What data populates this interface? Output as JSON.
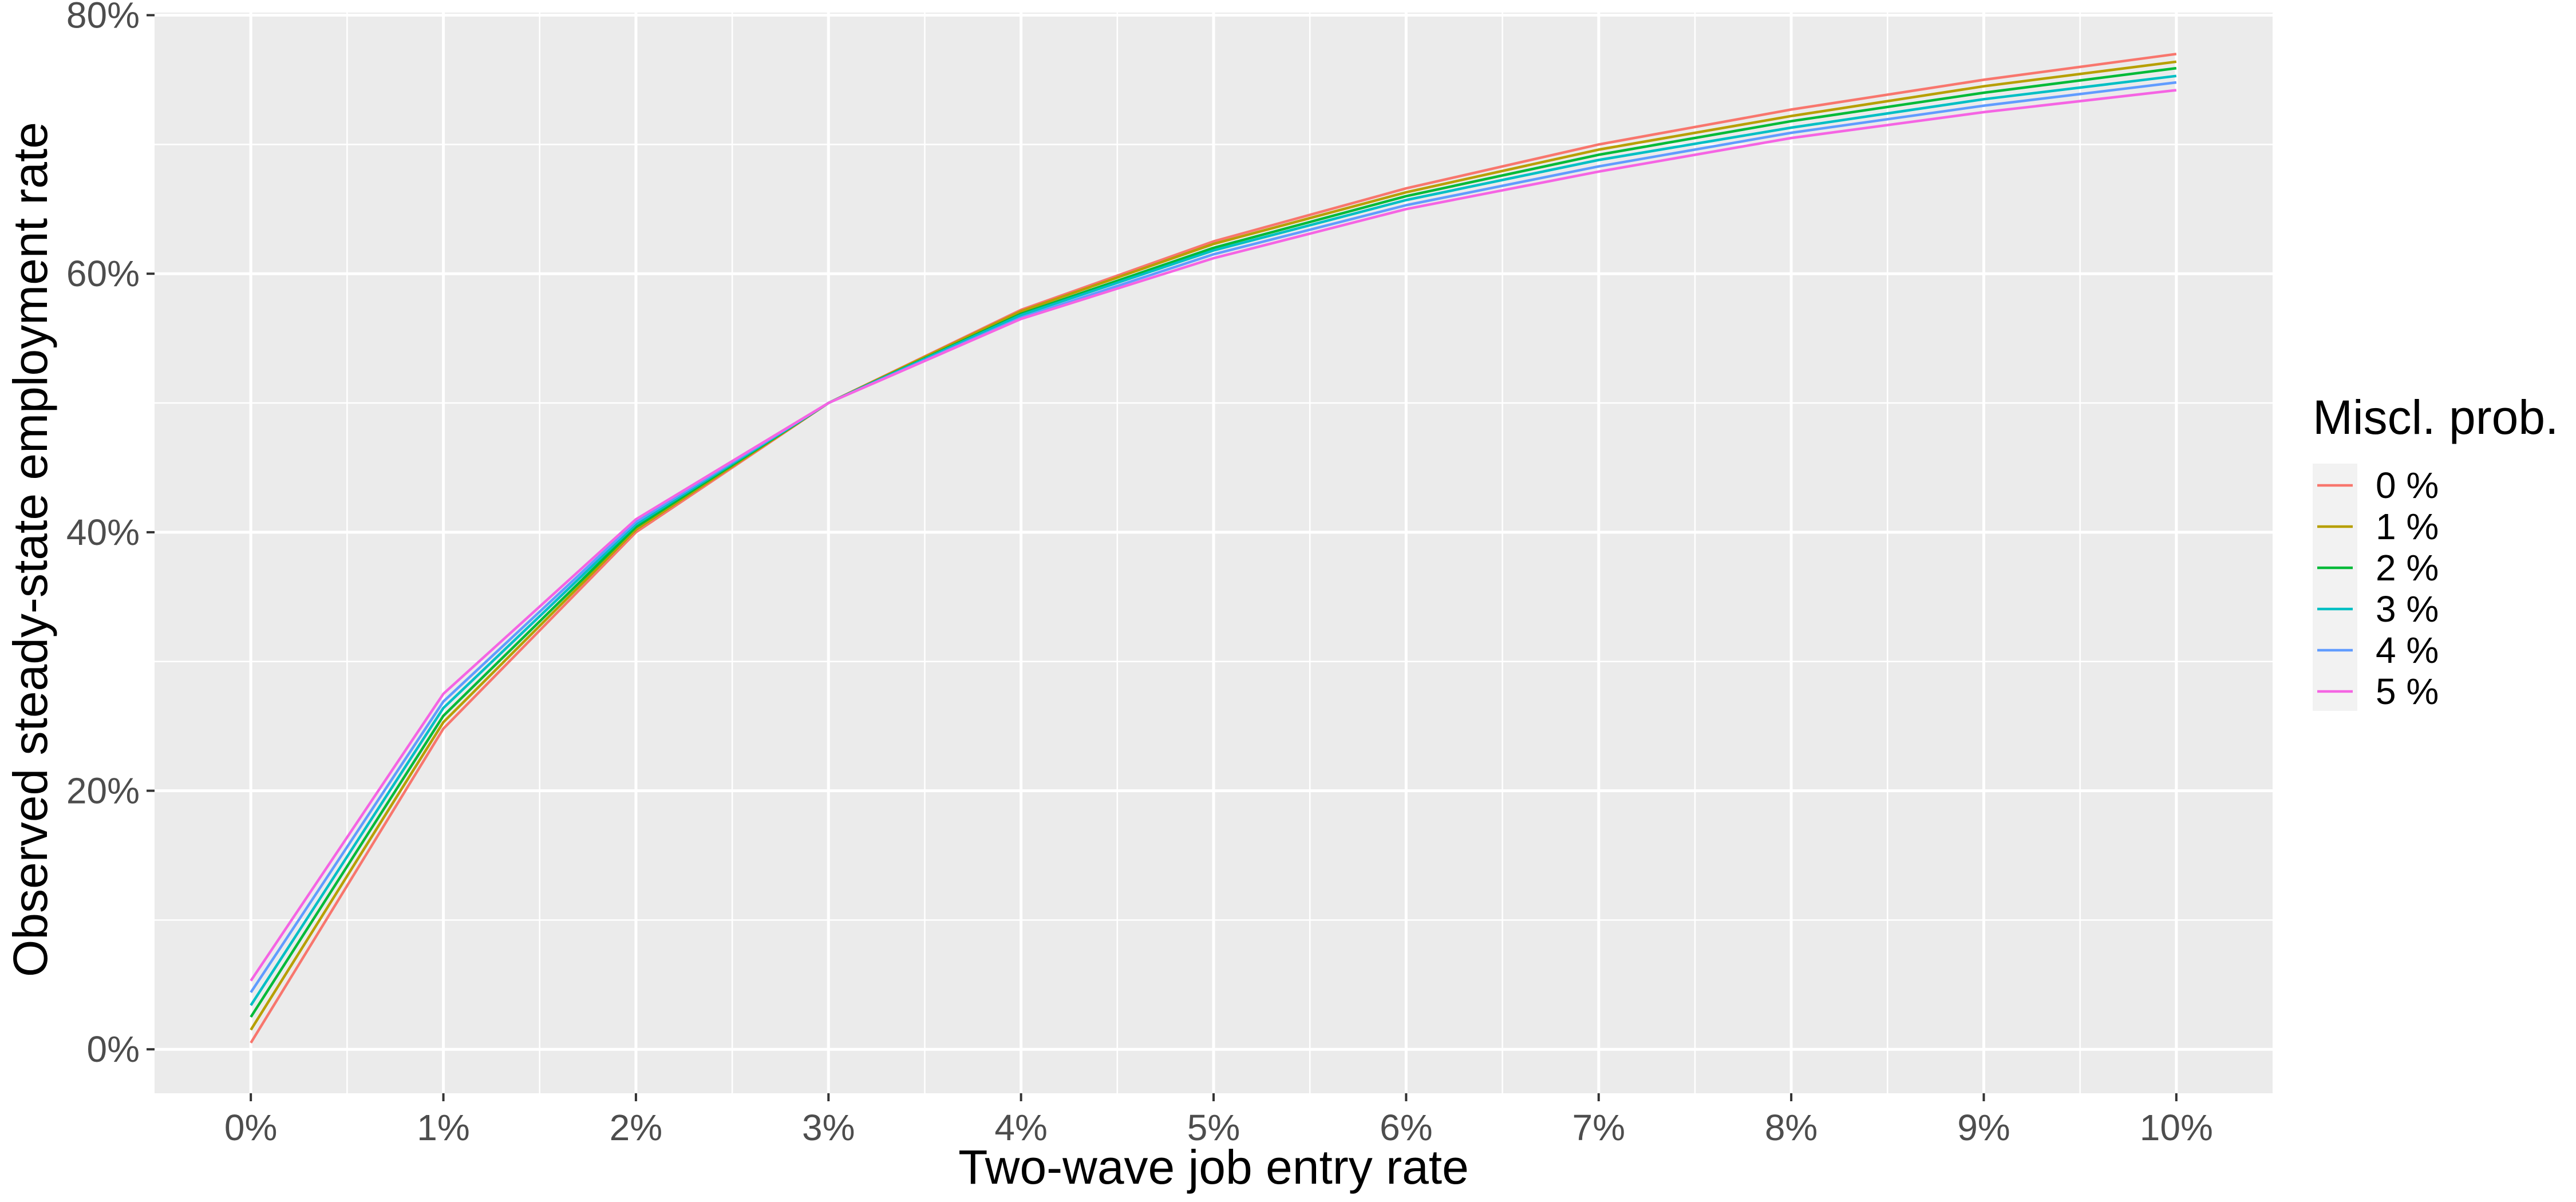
{
  "chart_data": {
    "type": "line",
    "xlabel": "Two-wave job entry rate",
    "ylabel": "Observed steady-state employment rate",
    "x": [
      0,
      1,
      2,
      3,
      4,
      5,
      6,
      7,
      8,
      9,
      10
    ],
    "x_tick_labels": [
      "0%",
      "1%",
      "2%",
      "3%",
      "4%",
      "5%",
      "6%",
      "7%",
      "8%",
      "9%",
      "10%"
    ],
    "y_ticks": [
      0,
      20,
      40,
      60,
      80
    ],
    "y_tick_labels": [
      "0%",
      "20%",
      "40%",
      "60%",
      "80%"
    ],
    "xlim": [
      -0.5,
      10.5
    ],
    "ylim": [
      -3.4,
      80.2
    ],
    "grid": true,
    "legend": {
      "title": "Miscl. prob.",
      "position": "right"
    },
    "series": [
      {
        "name": "0 %",
        "color": "#F8766D",
        "values": [
          0.5,
          24.8,
          40.0,
          50.0,
          57.2,
          62.5,
          66.6,
          70.0,
          72.7,
          75.0,
          77.0
        ]
      },
      {
        "name": "1 %",
        "color": "#B79F00",
        "values": [
          1.5,
          25.3,
          40.2,
          50.0,
          57.1,
          62.3,
          66.3,
          69.6,
          72.2,
          74.5,
          76.4
        ]
      },
      {
        "name": "2 %",
        "color": "#00BA38",
        "values": [
          2.5,
          25.8,
          40.4,
          50.0,
          56.9,
          62.0,
          66.0,
          69.2,
          71.8,
          74.0,
          75.9
        ]
      },
      {
        "name": "3 %",
        "color": "#00BFC4",
        "values": [
          3.4,
          26.4,
          40.6,
          50.0,
          56.8,
          61.8,
          65.7,
          68.8,
          71.3,
          73.5,
          75.3
        ]
      },
      {
        "name": "4 %",
        "color": "#619CFF",
        "values": [
          4.4,
          26.9,
          40.8,
          50.0,
          56.6,
          61.5,
          65.3,
          68.3,
          70.9,
          73.0,
          74.8
        ]
      },
      {
        "name": "5 %",
        "color": "#F564E3",
        "values": [
          5.3,
          27.5,
          41.0,
          50.0,
          56.5,
          61.2,
          65.0,
          67.9,
          70.5,
          72.5,
          74.2
        ]
      }
    ]
  }
}
